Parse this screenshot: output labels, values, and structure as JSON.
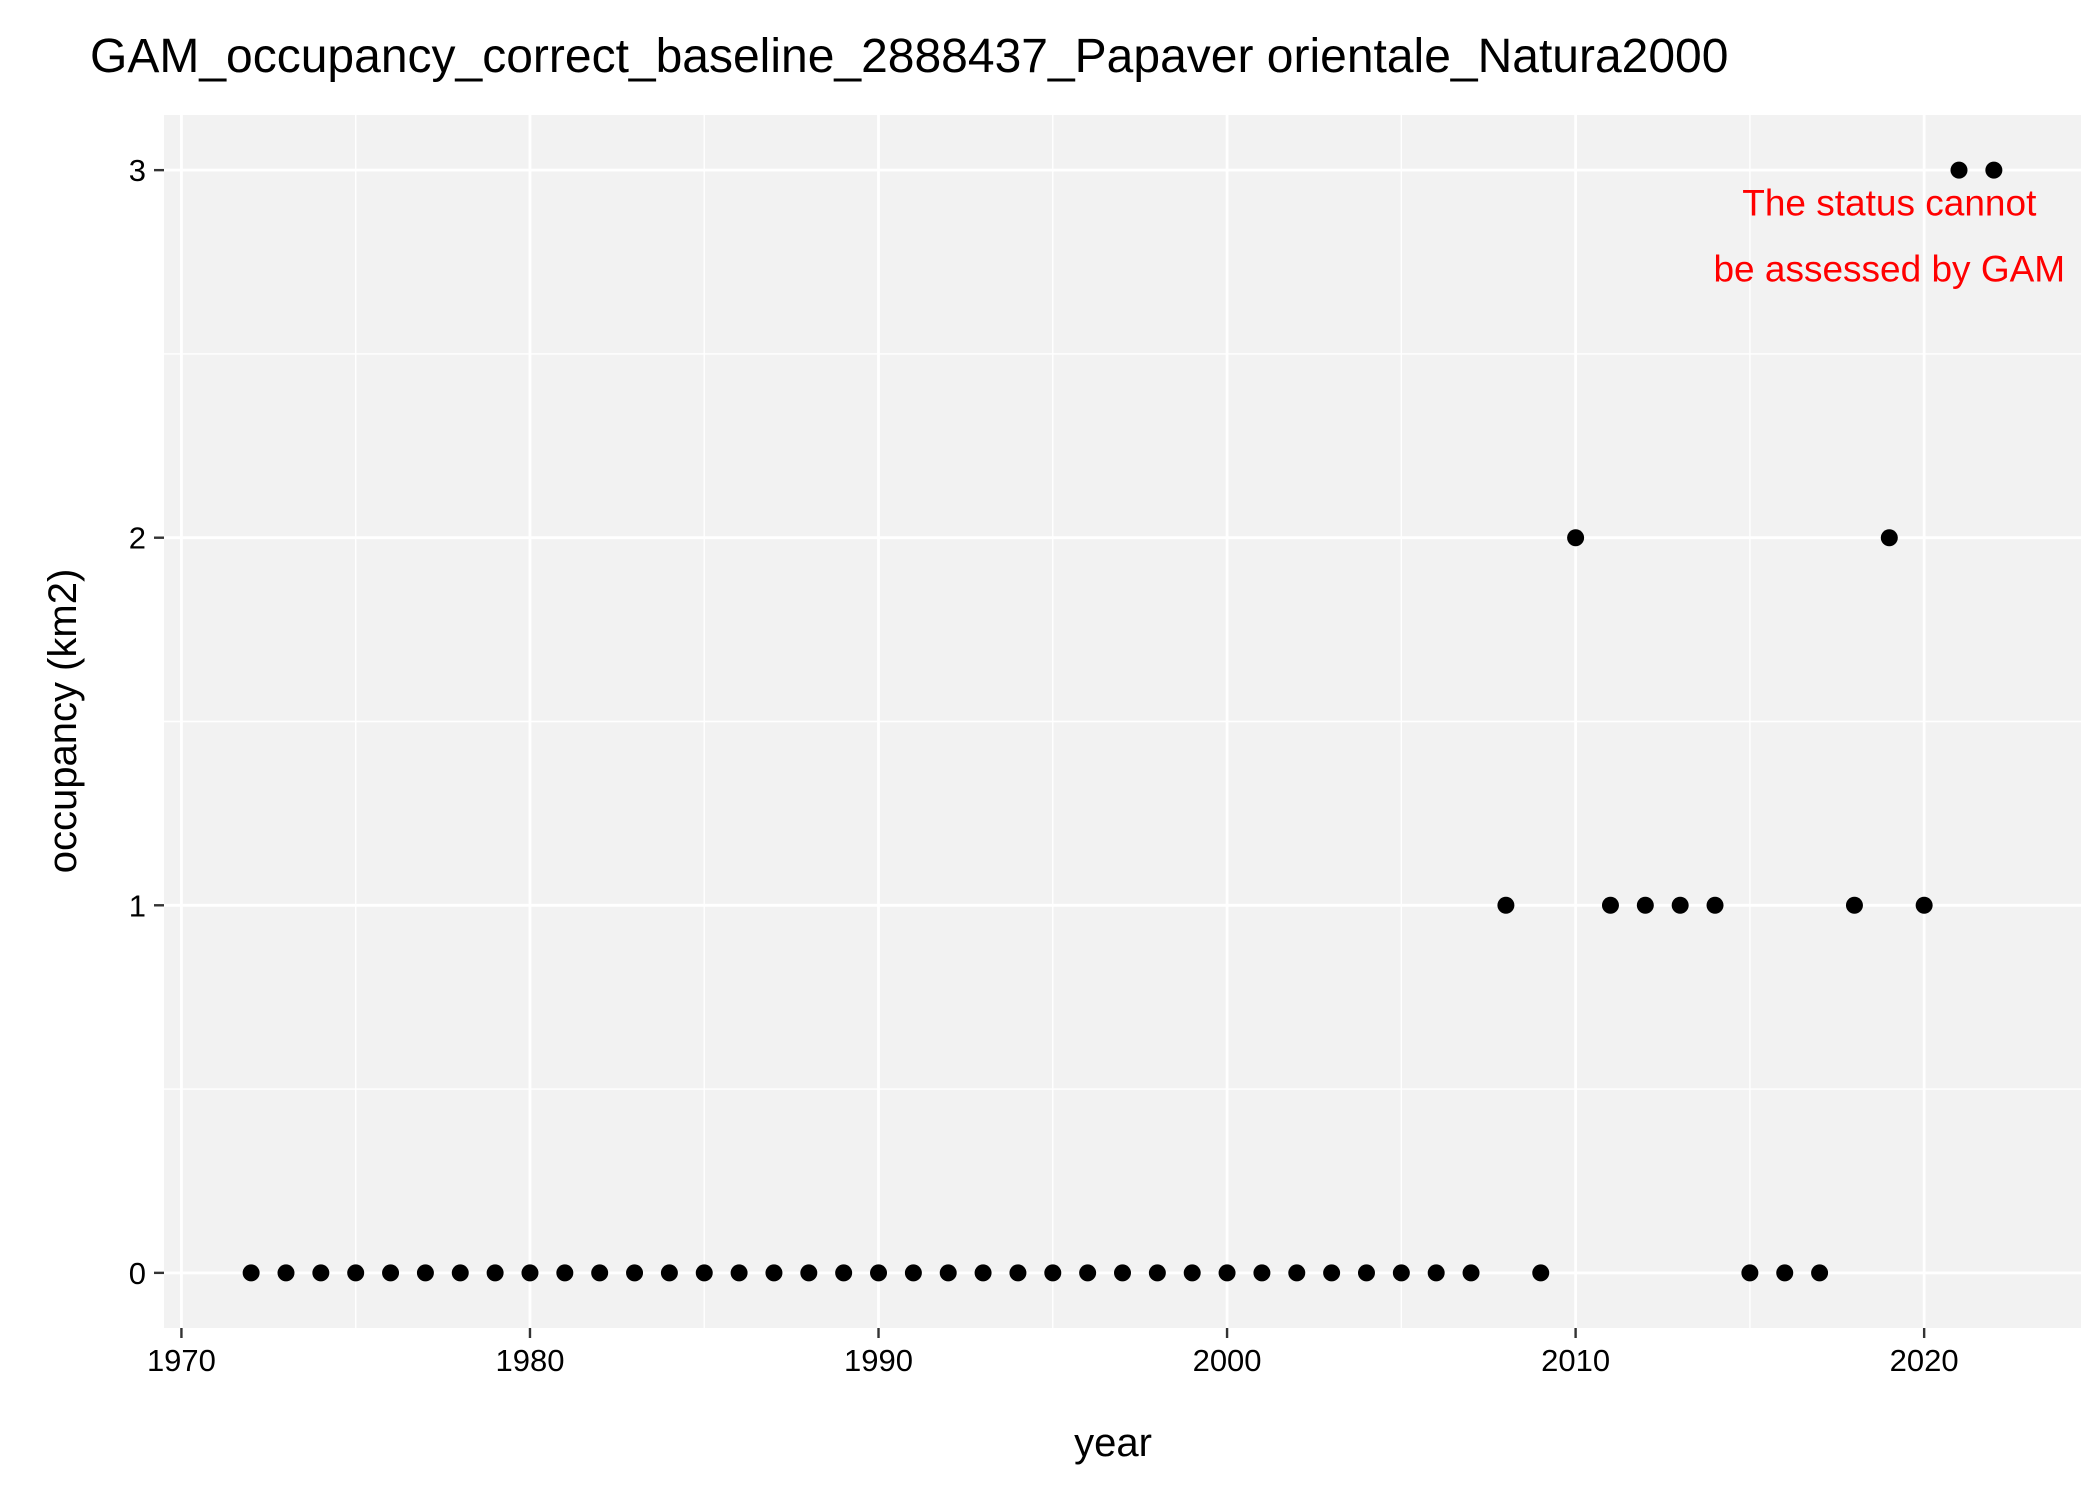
{
  "chart_data": {
    "type": "scatter",
    "title": "GAM_occupancy_correct_baseline_2888437_Papaver orientale_Natura2000",
    "xlabel": "year",
    "ylabel": "occupancy (km2)",
    "xlim": [
      1969.5,
      2024.5
    ],
    "ylim": [
      -0.15,
      3.15
    ],
    "x_ticks": [
      1970,
      1980,
      1990,
      2000,
      2010,
      2020
    ],
    "y_ticks": [
      0,
      1,
      2,
      3
    ],
    "grid": true,
    "legend": "none",
    "annotation": {
      "lines": [
        "The status cannot",
        "be assessed by GAM"
      ],
      "color": "#ff0000",
      "x": 2019,
      "y": 2.82
    },
    "points": [
      {
        "x": 1972,
        "y": 0
      },
      {
        "x": 1973,
        "y": 0
      },
      {
        "x": 1974,
        "y": 0
      },
      {
        "x": 1975,
        "y": 0
      },
      {
        "x": 1976,
        "y": 0
      },
      {
        "x": 1977,
        "y": 0
      },
      {
        "x": 1978,
        "y": 0
      },
      {
        "x": 1979,
        "y": 0
      },
      {
        "x": 1980,
        "y": 0
      },
      {
        "x": 1981,
        "y": 0
      },
      {
        "x": 1982,
        "y": 0
      },
      {
        "x": 1983,
        "y": 0
      },
      {
        "x": 1984,
        "y": 0
      },
      {
        "x": 1985,
        "y": 0
      },
      {
        "x": 1986,
        "y": 0
      },
      {
        "x": 1987,
        "y": 0
      },
      {
        "x": 1988,
        "y": 0
      },
      {
        "x": 1989,
        "y": 0
      },
      {
        "x": 1990,
        "y": 0
      },
      {
        "x": 1991,
        "y": 0
      },
      {
        "x": 1992,
        "y": 0
      },
      {
        "x": 1993,
        "y": 0
      },
      {
        "x": 1994,
        "y": 0
      },
      {
        "x": 1995,
        "y": 0
      },
      {
        "x": 1996,
        "y": 0
      },
      {
        "x": 1997,
        "y": 0
      },
      {
        "x": 1998,
        "y": 0
      },
      {
        "x": 1999,
        "y": 0
      },
      {
        "x": 2000,
        "y": 0
      },
      {
        "x": 2001,
        "y": 0
      },
      {
        "x": 2002,
        "y": 0
      },
      {
        "x": 2003,
        "y": 0
      },
      {
        "x": 2004,
        "y": 0
      },
      {
        "x": 2005,
        "y": 0
      },
      {
        "x": 2006,
        "y": 0
      },
      {
        "x": 2007,
        "y": 0
      },
      {
        "x": 2008,
        "y": 1
      },
      {
        "x": 2009,
        "y": 0
      },
      {
        "x": 2010,
        "y": 2
      },
      {
        "x": 2011,
        "y": 1
      },
      {
        "x": 2012,
        "y": 1
      },
      {
        "x": 2013,
        "y": 1
      },
      {
        "x": 2014,
        "y": 1
      },
      {
        "x": 2015,
        "y": 0
      },
      {
        "x": 2016,
        "y": 0
      },
      {
        "x": 2017,
        "y": 0
      },
      {
        "x": 2018,
        "y": 1
      },
      {
        "x": 2019,
        "y": 2
      },
      {
        "x": 2020,
        "y": 1
      },
      {
        "x": 2021,
        "y": 3
      },
      {
        "x": 2022,
        "y": 3
      }
    ],
    "colors": {
      "panel_background": "#f2f2f2",
      "grid_line": "#ffffff",
      "point": "#000000",
      "axis_text": "#000000",
      "tick_mark": "#333333"
    }
  }
}
